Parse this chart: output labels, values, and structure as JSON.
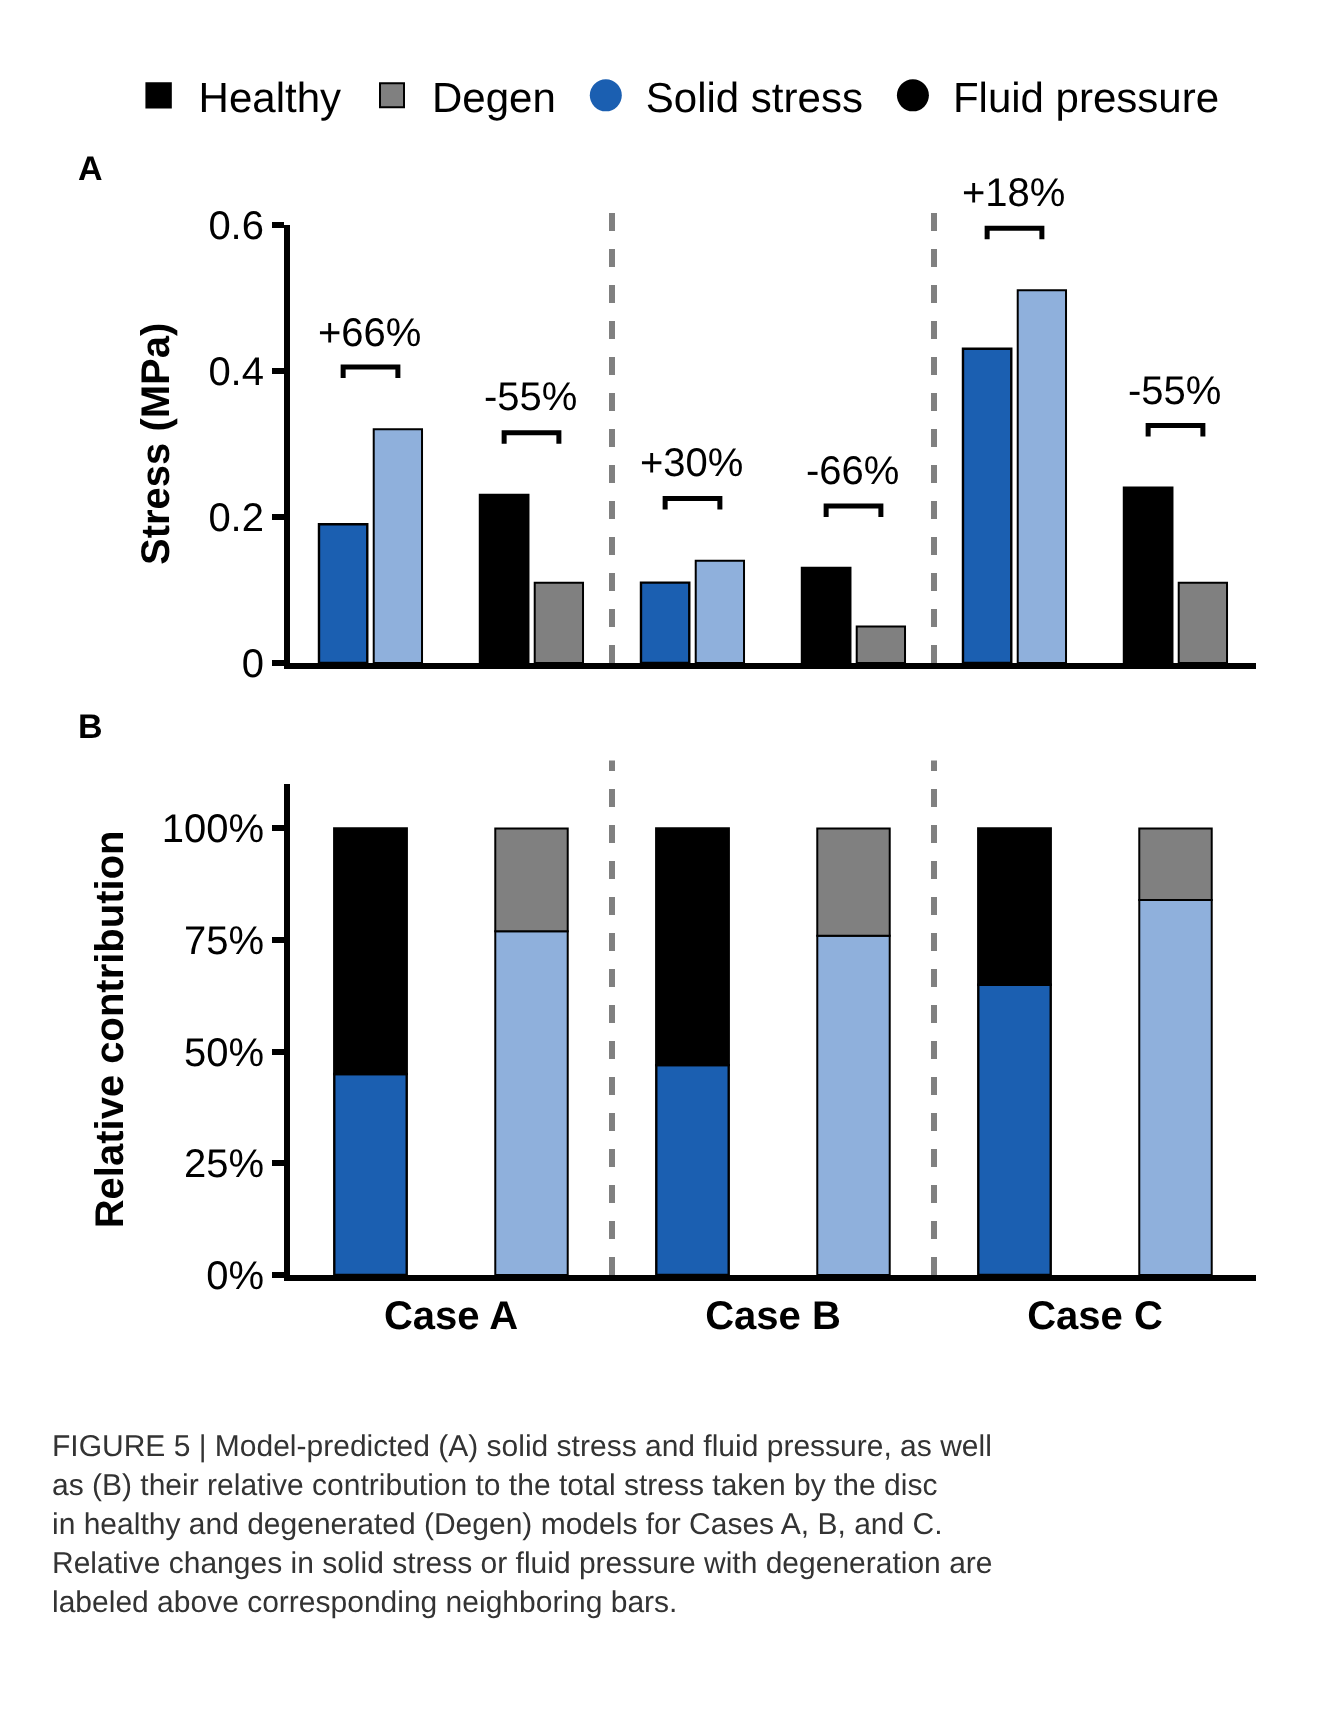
{
  "chart_data": [
    {
      "type": "bar",
      "title": "A",
      "ylabel": "Stress (MPa)",
      "categories": [
        null,
        null,
        null,
        null,
        null,
        null
      ],
      "series": [
        {
          "name": "Healthy",
          "color": "#000000",
          "colors": [
            "#1b5fb1",
            "#000000",
            "#1b5fb1",
            "#000000",
            "#1b5fb1",
            "#000000"
          ],
          "values": [
            0.19,
            0.23,
            0.11,
            0.13,
            0.43,
            0.24
          ]
        },
        {
          "name": "Degen",
          "color": "#808080",
          "colors": [
            "#8fb0dc",
            "#808080",
            "#8fb0dc",
            "#808080",
            "#8fb0dc",
            "#808080"
          ],
          "values": [
            0.32,
            0.11,
            0.14,
            0.05,
            0.51,
            0.11
          ]
        }
      ],
      "ylim": [
        0,
        0.6
      ],
      "yticks": [
        0,
        0.2,
        0.4,
        0.6
      ],
      "tick_labels": "y",
      "legend": "top",
      "annotations": [
        "+66%",
        "-55%",
        "+30%",
        "-66%",
        "+18%",
        "-55%"
      ]
    },
    {
      "type": "bar",
      "title": "B",
      "ylabel": "Relative contribution",
      "categories": [
        "Case A",
        null,
        "Case B",
        null,
        "Case C",
        null
      ],
      "stacked": true,
      "series": [
        {
          "name": "Solid stress",
          "color": "#1b5fb1",
          "colors": [
            "#1b5fb1",
            "#8fb0dc",
            "#1b5fb1",
            "#8fb0dc",
            "#1b5fb1",
            "#8fb0dc"
          ],
          "values": [
            45,
            77,
            47,
            76,
            65,
            84
          ]
        },
        {
          "name": "Fluid pressure",
          "color": "#000000",
          "colors": [
            "#000000",
            "#808080",
            "#000000",
            "#808080",
            "#000000",
            "#808080"
          ],
          "values": [
            55,
            23,
            53,
            24,
            35,
            16
          ]
        }
      ],
      "ylim": [
        0,
        110
      ],
      "yticks": [
        {
          "value": 0,
          "label": "0%"
        },
        {
          "value": 25,
          "label": "25%"
        },
        {
          "value": 50,
          "label": "50%"
        },
        {
          "value": 75,
          "label": "75%"
        },
        {
          "value": 100,
          "label": "100%"
        }
      ],
      "legend": "top",
      "annotations": [
        "FIGURE 5 | Model-predicted (A) solid stress and fluid pressure, as well as (B) their relative contribution to the total stress taken by the disc in healthy and degenerated (Degen) models for Cases A, B, and C. Relative changes in solid stress or fluid pressure with degeneration are labeled above corresponding neighboring bars."
      ]
    }
  ]
}
